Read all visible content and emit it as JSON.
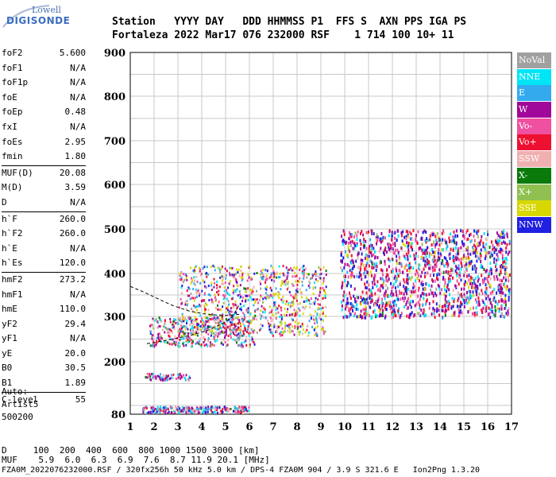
{
  "logo": {
    "top": "Lowell",
    "bottom": "DIGISONDE"
  },
  "header": {
    "line1": "Station   YYYY DAY   DDD HHMMSS P1  FFS S  AXN PPS IGA PS",
    "line2": "Fortaleza 2022 Mar17 076 232000 RSF    1 714 100 10+ 11"
  },
  "params": [
    {
      "group": [
        {
          "name": "foF2",
          "value": "5.600"
        },
        {
          "name": "foF1",
          "value": "N/A"
        },
        {
          "name": "foF1p",
          "value": "N/A"
        },
        {
          "name": "foE",
          "value": "N/A"
        },
        {
          "name": "foEp",
          "value": "0.48"
        },
        {
          "name": "fxI",
          "value": "N/A"
        },
        {
          "name": "foEs",
          "value": "2.95"
        },
        {
          "name": "fmin",
          "value": "1.80"
        }
      ]
    },
    {
      "group": [
        {
          "name": "MUF(D)",
          "value": "20.08"
        },
        {
          "name": "M(D)",
          "value": "3.59"
        },
        {
          "name": "D",
          "value": "N/A"
        }
      ]
    },
    {
      "group": [
        {
          "name": "h`F",
          "value": "260.0"
        },
        {
          "name": "h`F2",
          "value": "260.0"
        },
        {
          "name": "h`E",
          "value": "N/A"
        },
        {
          "name": "h`Es",
          "value": "120.0"
        }
      ]
    },
    {
      "group": [
        {
          "name": "hmF2",
          "value": "273.2"
        },
        {
          "name": "hmF1",
          "value": "N/A"
        },
        {
          "name": "hmE",
          "value": "110.0"
        },
        {
          "name": "yF2",
          "value": "29.4"
        },
        {
          "name": "yF1",
          "value": "N/A"
        },
        {
          "name": "yE",
          "value": "20.0"
        },
        {
          "name": "B0",
          "value": "30.5"
        },
        {
          "name": "B1",
          "value": "1.89"
        }
      ]
    },
    {
      "group": [
        {
          "name": "C-level",
          "value": "55"
        }
      ]
    }
  ],
  "auto": [
    "Auto:",
    "Artist5",
    "500200"
  ],
  "legend": [
    {
      "label": "NoVal",
      "color": "#a0a0a0"
    },
    {
      "label": "NNE",
      "color": "#00e5f5"
    },
    {
      "label": "E",
      "color": "#33aaee"
    },
    {
      "label": "W",
      "color": "#a0089a"
    },
    {
      "label": "Vo-",
      "color": "#f050a0"
    },
    {
      "label": "Vo+",
      "color": "#ee1030"
    },
    {
      "label": "SSW",
      "color": "#f0b0b0"
    },
    {
      "label": "X-",
      "color": "#0a7a0a"
    },
    {
      "label": "X+",
      "color": "#90c050"
    },
    {
      "label": "SSE",
      "color": "#d8d800"
    },
    {
      "label": "NNW",
      "color": "#2020e0"
    }
  ],
  "bottom": {
    "d_line": "D     100  200  400  600  800 1000 1500 3000 [km]",
    "muf_line": "MUF    5.9  6.0  6.3  6.9  7.6  8.7 11.9 20.1 [MHz]",
    "footer": "FZA0M_2022076232000.RSF / 320fx256h 50 kHz 5.0 km / DPS-4 FZA0M 904 / 3.9 S 321.6 E   Ion2Png 1.3.20"
  },
  "chart_data": {
    "type": "scatter",
    "xlabel": "",
    "ylabel": "",
    "xlim": [
      1,
      17
    ],
    "ylim": [
      80,
      900
    ],
    "xticks": [
      "1",
      "2",
      "3",
      "4",
      "5",
      "6",
      "7",
      "8",
      "9",
      "10",
      "11",
      "12",
      "13",
      "14",
      "15",
      "16",
      "17"
    ],
    "yticks": [
      "80",
      "200",
      "300",
      "400",
      "500",
      "600",
      "700",
      "800",
      "900"
    ],
    "grid": true,
    "traces": [
      {
        "name": "ionogram-trace-es",
        "x_range": [
          1.5,
          6.0
        ],
        "y_range": [
          85,
          100
        ]
      },
      {
        "name": "ionogram-trace-es-2",
        "x_range": [
          1.6,
          3.5
        ],
        "y_range": [
          160,
          175
        ]
      },
      {
        "name": "ionogram-trace-f-low",
        "x_range": [
          1.8,
          6.2
        ],
        "y_range": [
          235,
          300
        ]
      },
      {
        "name": "ionogram-trace-f-main",
        "x_range": [
          3.0,
          9.2
        ],
        "y_range": [
          260,
          420
        ]
      },
      {
        "name": "ionogram-trace-high",
        "x_range": [
          9.8,
          16.9
        ],
        "y_range": [
          300,
          500
        ]
      }
    ],
    "fitted_profile": {
      "x": [
        1.7,
        2.2,
        2.8,
        3.5,
        4.2,
        4.9,
        5.3,
        5.6
      ],
      "y": [
        240,
        244,
        250,
        258,
        268,
        285,
        300,
        330
      ]
    },
    "fitted_profile_2": {
      "x": [
        1.0,
        1.6,
        2.2,
        2.8,
        3.5,
        4.2,
        4.9,
        5.6
      ],
      "y": [
        370,
        356,
        340,
        325,
        312,
        305,
        302,
        305
      ]
    }
  }
}
